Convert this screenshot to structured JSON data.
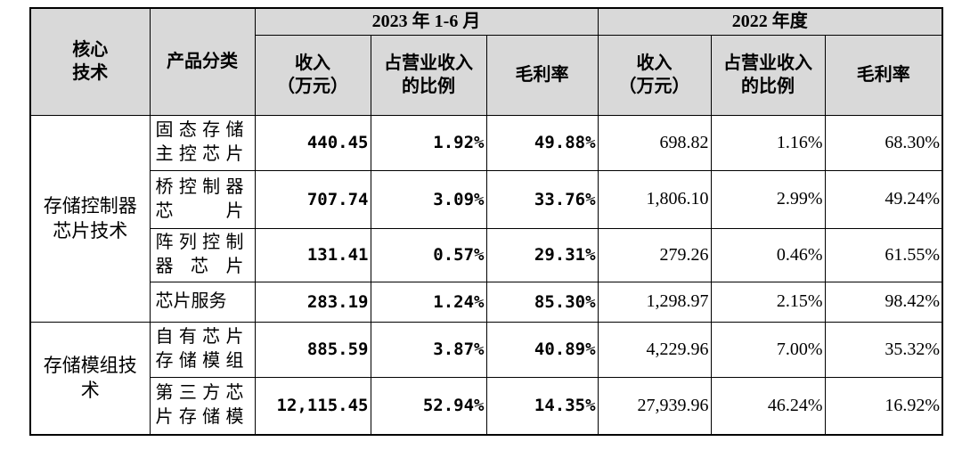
{
  "header": {
    "core_tech": "核心\n技术",
    "product_category": "产品分类",
    "periods": [
      {
        "label": "2023 年 1-6 月",
        "columns": [
          "收入\n（万元）",
          "占营业收入\n的比例",
          "毛利率"
        ]
      },
      {
        "label": "2022 年度",
        "columns": [
          "收入\n（万元）",
          "占营业收入\n的比例",
          "毛利率"
        ]
      }
    ]
  },
  "groups": [
    {
      "core_tech": "存储控制器芯片技术",
      "rows": [
        {
          "product": "固态存储主控芯片",
          "values": [
            "440.45",
            "1.92%",
            "49.88%",
            "698.82",
            "1.16%",
            "68.30%"
          ]
        },
        {
          "product": "桥控制器芯片",
          "values": [
            "707.74",
            "3.09%",
            "33.76%",
            "1,806.10",
            "2.99%",
            "49.24%"
          ]
        },
        {
          "product": "阵列控制器芯片",
          "values": [
            "131.41",
            "0.57%",
            "29.31%",
            "279.26",
            "0.46%",
            "61.55%"
          ]
        },
        {
          "product": "芯片服务",
          "values": [
            "283.19",
            "1.24%",
            "85.30%",
            "1,298.97",
            "2.15%",
            "98.42%"
          ]
        }
      ]
    },
    {
      "core_tech": "存储模组技术",
      "rows": [
        {
          "product": "自有芯片存储模组",
          "values": [
            "885.59",
            "3.87%",
            "40.89%",
            "4,229.96",
            "7.00%",
            "35.32%"
          ]
        },
        {
          "product": "第三方芯片存储模",
          "values": [
            "12,115.45",
            "52.94%",
            "14.35%",
            "27,939.96",
            "46.24%",
            "16.92%"
          ]
        }
      ]
    }
  ]
}
